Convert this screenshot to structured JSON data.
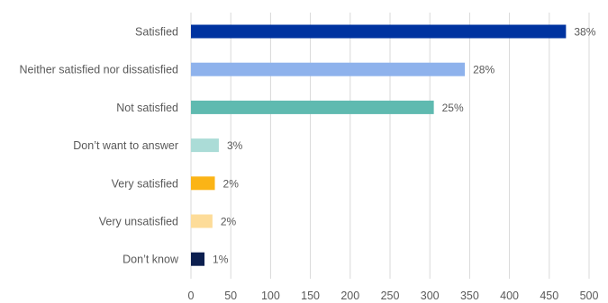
{
  "chart_data": {
    "type": "bar",
    "orientation": "horizontal",
    "title": "",
    "xlabel": "",
    "ylabel": "",
    "xlim": [
      0,
      500
    ],
    "x_ticks": [
      0,
      50,
      100,
      150,
      200,
      250,
      300,
      350,
      400,
      450,
      500
    ],
    "grid": "vertical",
    "legend": "none",
    "categories": [
      "Satisfied",
      "Neither satisfied nor dissatisfied",
      "Not satisfied",
      "Don’t want to answer",
      "Very satisfied",
      "Very unsatisfied",
      "Don’t know"
    ],
    "values": [
      471,
      344,
      305,
      35,
      30,
      27,
      17
    ],
    "data_labels": [
      "38%",
      "28%",
      "25%",
      "3%",
      "2%",
      "2%",
      "1%"
    ],
    "colors": [
      "#0033a0",
      "#8eb2ec",
      "#5fbab0",
      "#abdcd7",
      "#fbb416",
      "#fddc99",
      "#0c1f4f"
    ]
  }
}
